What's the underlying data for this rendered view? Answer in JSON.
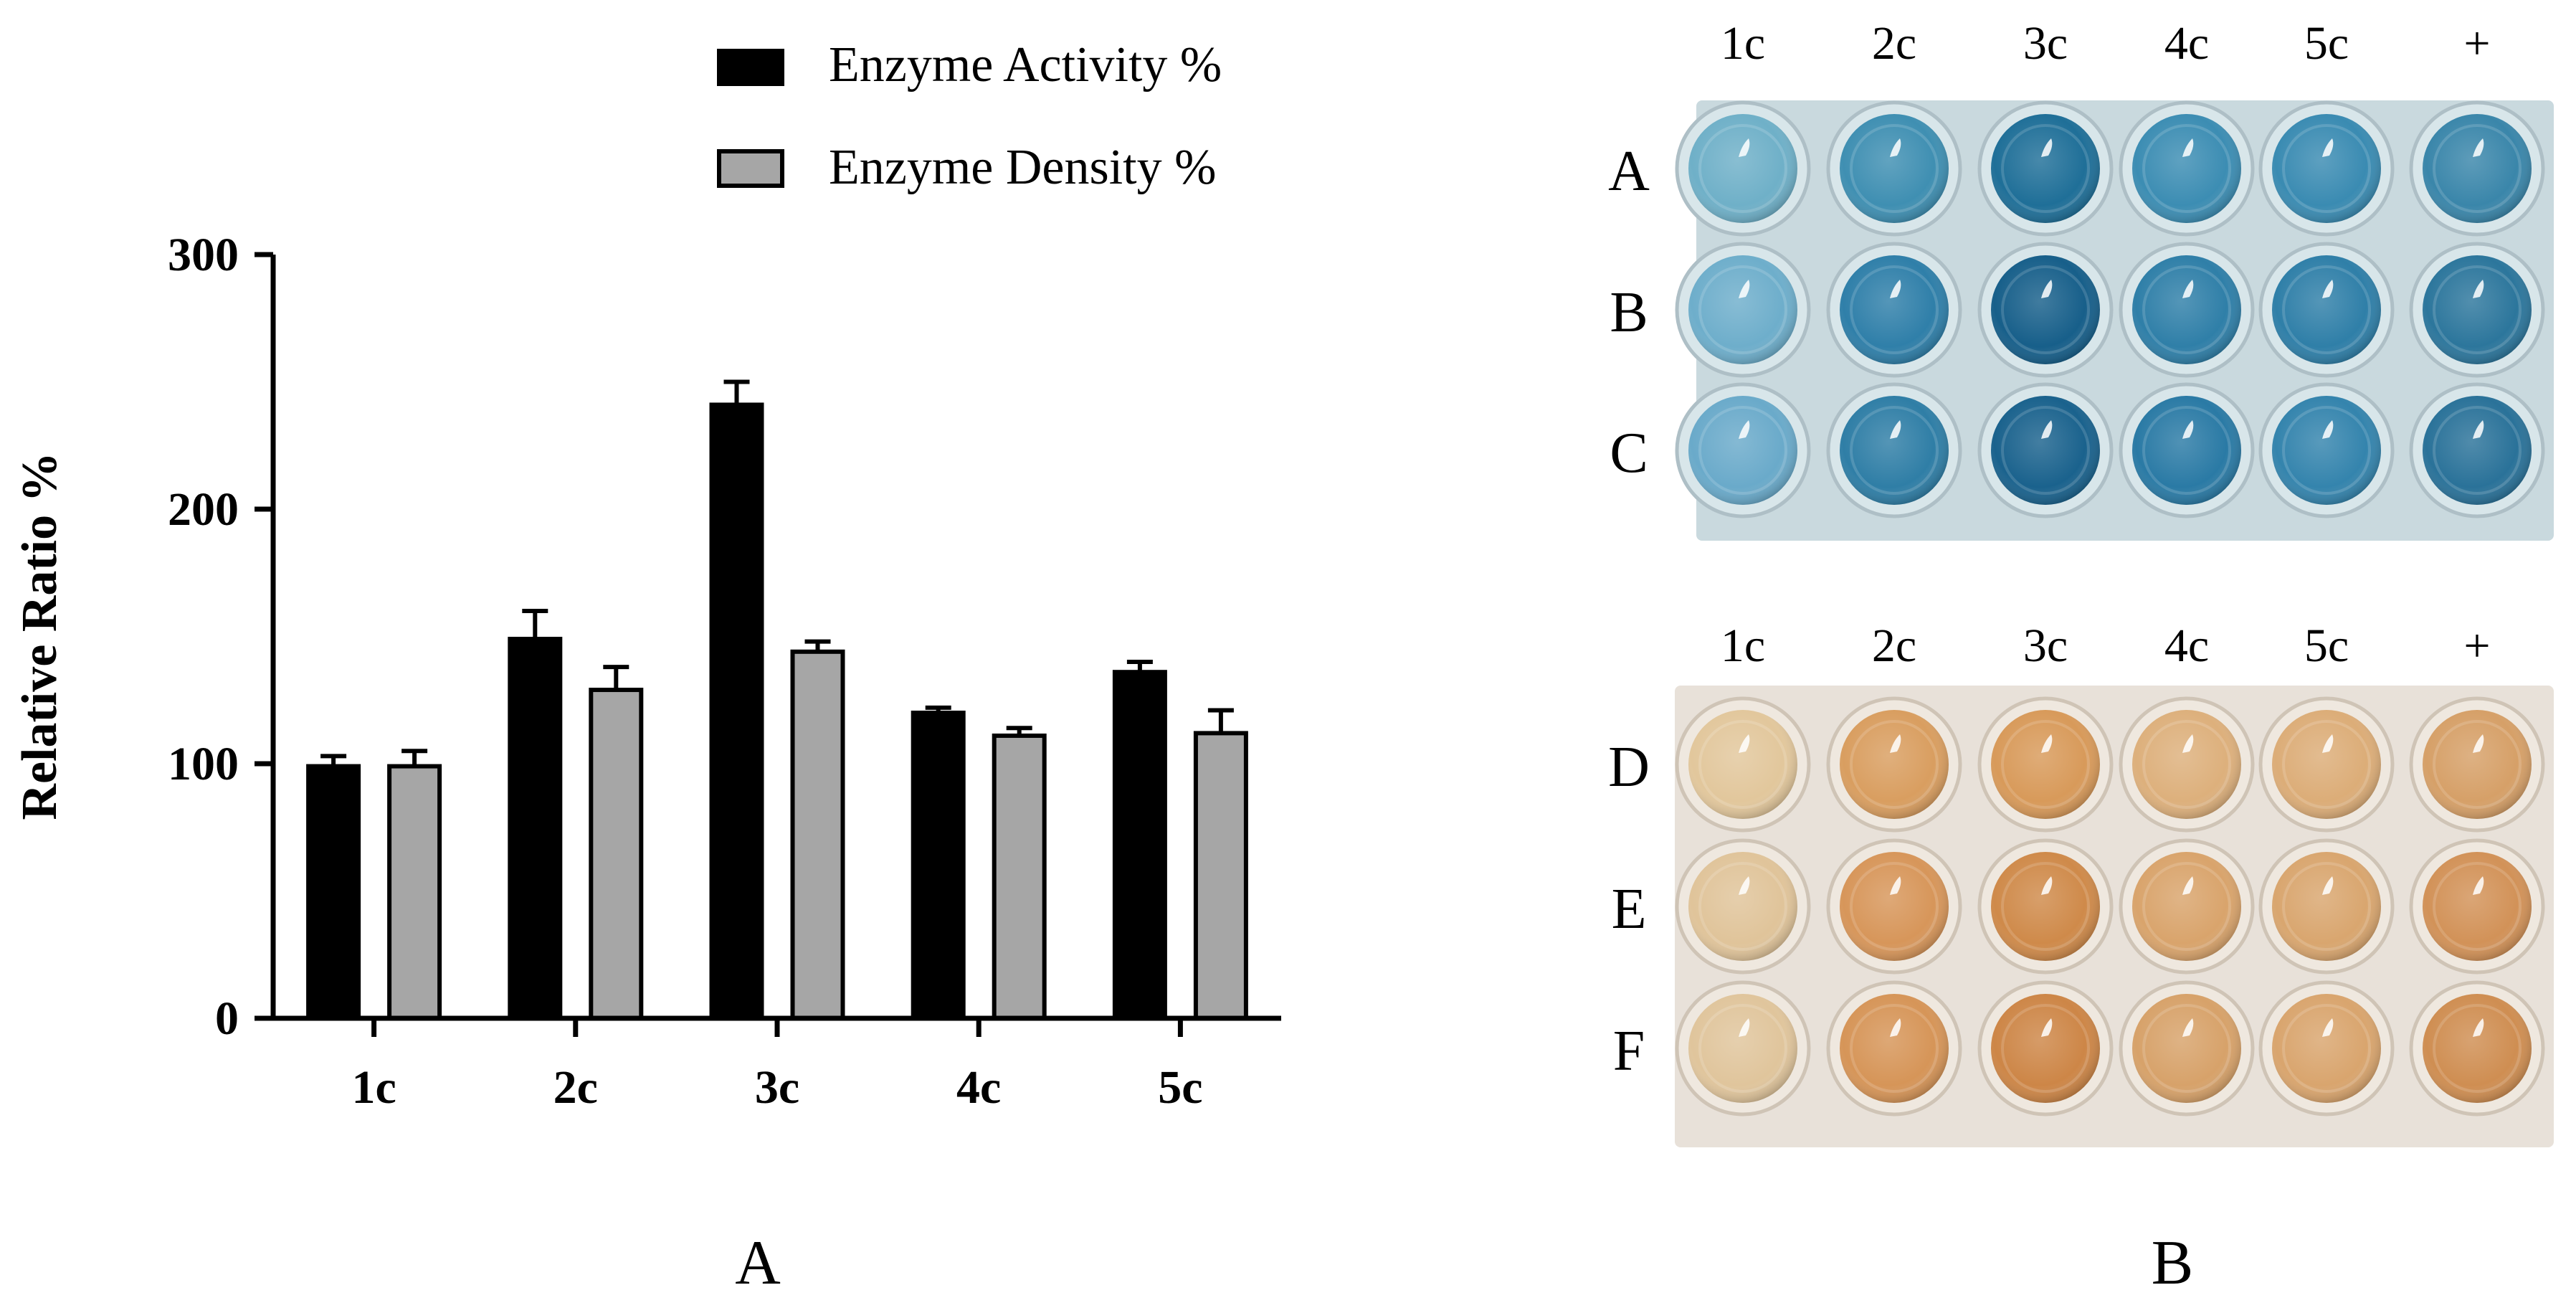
{
  "panels": {
    "left_label": "A",
    "right_label": "B"
  },
  "chart_data": {
    "type": "bar",
    "title": "",
    "xlabel": "",
    "ylabel": "Relative Ratio %",
    "categories": [
      "1c",
      "2c",
      "3c",
      "4c",
      "5c"
    ],
    "ylim": [
      0,
      300
    ],
    "yticks": [
      0,
      100,
      200,
      300
    ],
    "legend_position": "top-right",
    "series": [
      {
        "name": "Enzyme Activity %",
        "color": "#000000",
        "values": [
          99,
          149,
          241,
          120,
          136
        ],
        "errors": [
          4,
          11,
          9,
          2,
          4
        ]
      },
      {
        "name": "Enzyme Density %",
        "color": "#a6a6a6",
        "values": [
          99,
          129,
          144,
          111,
          112
        ],
        "errors": [
          6,
          9,
          4,
          3,
          9
        ]
      }
    ]
  },
  "plates": {
    "columns": [
      "1c",
      "2c",
      "3c",
      "4c",
      "5c",
      "+"
    ],
    "top_rows": [
      "A",
      "B",
      "C"
    ],
    "bottom_rows": [
      "D",
      "E",
      "F"
    ],
    "top_colors": [
      [
        "#6fb0c8",
        "#3f8fb2",
        "#1f6f98",
        "#3c8db3",
        "#3a8bb2",
        "#3a86aa"
      ],
      [
        "#6eaecb",
        "#2f7fa9",
        "#175f8a",
        "#2f7fa8",
        "#2f7fa8",
        "#2c769c"
      ],
      [
        "#6aaaca",
        "#2f7ea6",
        "#1a628d",
        "#2a7aa5",
        "#3484ad",
        "#2a7299"
      ]
    ],
    "bottom_colors": [
      [
        "#e2c79c",
        "#d99e60",
        "#d89a5a",
        "#ddb07c",
        "#dcad78",
        "#d6a068"
      ],
      [
        "#e0c49a",
        "#d7965a",
        "#cf8a4a",
        "#d9a46c",
        "#d9a66f",
        "#d29258"
      ],
      [
        "#e0c59c",
        "#d69558",
        "#cd8647",
        "#d7a26a",
        "#d9a56e",
        "#cf8e52"
      ]
    ]
  }
}
